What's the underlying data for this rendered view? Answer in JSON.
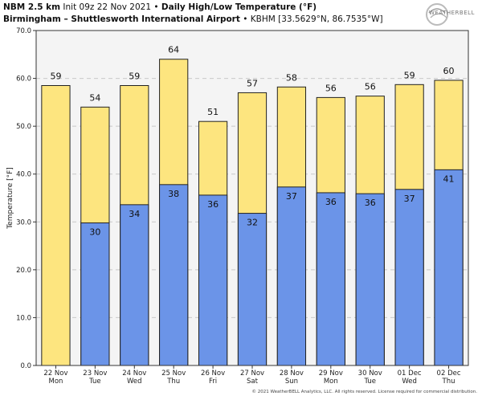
{
  "header": {
    "model": "NBM 2.5 km",
    "init": "Init 09z 22 Nov 2021",
    "bullet": "•",
    "title": "Daily High/Low Temperature (°F)",
    "station": "Birmingham – Shuttlesworth International Airport",
    "station_meta": "• KBHM [33.5629°N, 86.7535°W]"
  },
  "logo": {
    "text": "WEATHERBELL",
    "icon": "weatherbell-swirl-logo"
  },
  "copyright": "© 2021 WeatherBELL Analytics, LLC. All rights reserved. License required for commercial distribution.",
  "colors": {
    "high": "#fde57f",
    "low": "#6b94e8",
    "border": "#222222",
    "plot_bg": "#f4f4f4",
    "grid": "#c8c8c8"
  },
  "chart_data": {
    "type": "bar",
    "ylabel": "Temperature [°F]",
    "ylim": [
      0,
      70
    ],
    "yticks": [
      "0.0",
      "10.0",
      "20.0",
      "30.0",
      "40.0",
      "50.0",
      "60.0",
      "70.0"
    ],
    "categories": [
      "22 Nov",
      "23 Nov",
      "24 Nov",
      "25 Nov",
      "26 Nov",
      "27 Nov",
      "28 Nov",
      "29 Nov",
      "30 Nov",
      "01 Dec",
      "02 Dec"
    ],
    "weekdays": [
      "Mon",
      "Tue",
      "Wed",
      "Thu",
      "Fri",
      "Sat",
      "Sun",
      "Mon",
      "Tue",
      "Wed",
      "Thu"
    ],
    "grid": true,
    "series": [
      {
        "values": [
          58.5,
          54,
          58.5,
          64,
          51,
          57,
          58.2,
          56,
          56.3,
          58.7,
          59.6
        ],
        "labels": [
          "59",
          "54",
          "59",
          "64",
          "51",
          "57",
          "58",
          "56",
          "56",
          "59",
          "60"
        ]
      },
      {
        "values": [
          null,
          29.8,
          33.6,
          37.8,
          35.6,
          31.8,
          37.3,
          36.1,
          35.9,
          36.8,
          40.9
        ],
        "labels": [
          "",
          "30",
          "34",
          "38",
          "36",
          "32",
          "37",
          "36",
          "36",
          "37",
          "41"
        ]
      }
    ]
  }
}
